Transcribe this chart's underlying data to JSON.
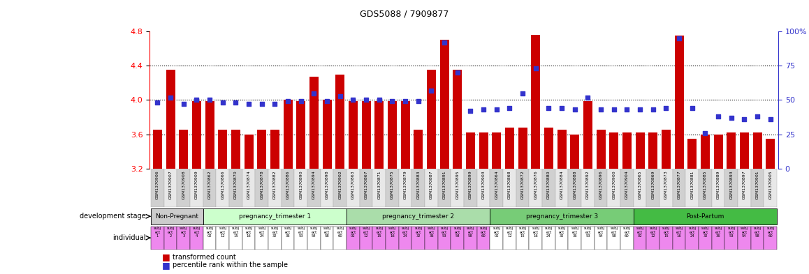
{
  "title": "GDS5088 / 7909877",
  "samples": [
    "GSM1370906",
    "GSM1370907",
    "GSM1370908",
    "GSM1370909",
    "GSM1370862",
    "GSM1370866",
    "GSM1370870",
    "GSM1370874",
    "GSM1370878",
    "GSM1370882",
    "GSM1370886",
    "GSM1370890",
    "GSM1370894",
    "GSM1370898",
    "GSM1370902",
    "GSM1370863",
    "GSM1370867",
    "GSM1370871",
    "GSM1370875",
    "GSM1370879",
    "GSM1370883",
    "GSM1370887",
    "GSM1370891",
    "GSM1370895",
    "GSM1370899",
    "GSM1370903",
    "GSM1370864",
    "GSM1370868",
    "GSM1370872",
    "GSM1370876",
    "GSM1370880",
    "GSM1370884",
    "GSM1370888",
    "GSM1370892",
    "GSM1370896",
    "GSM1370900",
    "GSM1370904",
    "GSM1370865",
    "GSM1370869",
    "GSM1370873",
    "GSM1370877",
    "GSM1370881",
    "GSM1370885",
    "GSM1370889",
    "GSM1370893",
    "GSM1370897",
    "GSM1370901",
    "GSM1370905"
  ],
  "bar_values": [
    3.65,
    4.35,
    3.65,
    3.99,
    3.99,
    3.65,
    3.65,
    3.6,
    3.65,
    3.65,
    4.0,
    3.99,
    4.27,
    4.0,
    4.3,
    3.99,
    3.99,
    3.99,
    3.99,
    3.99,
    3.65,
    4.35,
    4.7,
    4.35,
    3.62,
    3.62,
    3.62,
    3.68,
    3.68,
    4.76,
    3.68,
    3.65,
    3.6,
    3.99,
    3.65,
    3.62,
    3.62,
    3.62,
    3.62,
    3.65,
    4.75,
    3.55,
    3.6,
    3.6,
    3.62,
    3.62,
    3.62,
    3.55
  ],
  "percentile_values": [
    48,
    52,
    47,
    50,
    50,
    48,
    48,
    47,
    47,
    47,
    49,
    49,
    55,
    49,
    53,
    50,
    50,
    50,
    49,
    49,
    49,
    57,
    92,
    70,
    42,
    43,
    43,
    44,
    55,
    73,
    44,
    44,
    43,
    52,
    43,
    43,
    43,
    43,
    43,
    44,
    95,
    44,
    26,
    38,
    37,
    36,
    38,
    36
  ],
  "groups": [
    {
      "label": "Non-Pregnant",
      "start": 0,
      "end": 4
    },
    {
      "label": "pregnancy_trimester 1",
      "start": 4,
      "end": 15
    },
    {
      "label": "pregnancy_trimester 2",
      "start": 15,
      "end": 26
    },
    {
      "label": "pregnancy_trimester 3",
      "start": 26,
      "end": 37
    },
    {
      "label": "Post-Partum",
      "start": 37,
      "end": 48
    }
  ],
  "group_colors": [
    "#cccccc",
    "#ccffcc",
    "#aaddaa",
    "#77cc77",
    "#44bb44"
  ],
  "subj_nums": [
    "02",
    "12",
    "15",
    "16",
    "24",
    "32",
    "36",
    "53",
    "54",
    "58",
    "60"
  ],
  "ylim_left": [
    3.2,
    4.8
  ],
  "ylim_right": [
    0,
    100
  ],
  "yticks_left": [
    3.2,
    3.6,
    4.0,
    4.4,
    4.8
  ],
  "yticks_right": [
    0,
    25,
    50,
    75,
    100
  ],
  "bar_color": "#cc0000",
  "blue_color": "#3333cc",
  "bg_color": "#ffffff"
}
